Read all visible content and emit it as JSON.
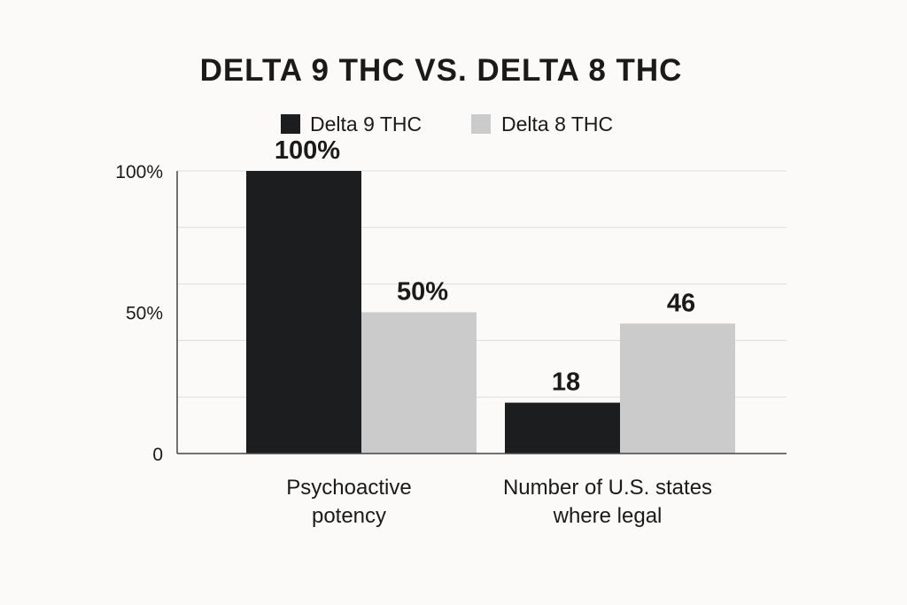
{
  "chart_data": {
    "type": "bar",
    "title": "DELTA 9 THC VS. DELTA 8 THC",
    "categories": [
      "Psychoactive potency",
      "Number of U.S. states where legal"
    ],
    "category_lines": [
      [
        "Psychoactive",
        "potency"
      ],
      [
        "Number of U.S. states",
        "where legal"
      ]
    ],
    "series": [
      {
        "name": "Delta 9 THC",
        "color": "#1c1d1f",
        "values": [
          100,
          18
        ],
        "labels": [
          "100%",
          "18"
        ]
      },
      {
        "name": "Delta 8 THC",
        "color": "#cbcbcb",
        "values": [
          50,
          46
        ],
        "labels": [
          "50%",
          "46"
        ]
      }
    ],
    "y_ticks": [
      {
        "value": 0,
        "label": "0"
      },
      {
        "value": 50,
        "label": "50%"
      },
      {
        "value": 100,
        "label": "100%"
      }
    ],
    "ylim": [
      0,
      100
    ],
    "grid": true,
    "legend_position": "top-center"
  }
}
